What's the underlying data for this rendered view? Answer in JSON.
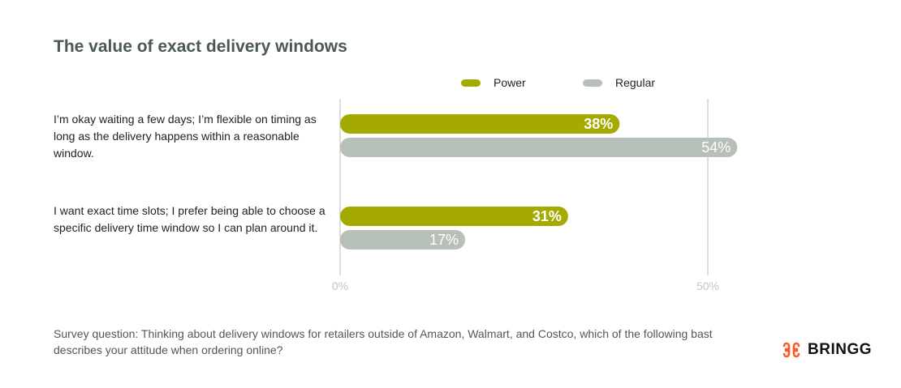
{
  "chart_data": {
    "type": "bar",
    "orientation": "horizontal",
    "title": "The value of exact delivery windows",
    "categories": [
      "I’m okay waiting a few days; I’m flexible on timing as long as the delivery happens within a reasonable window.",
      "I want exact time slots; I prefer being able to choose a specific delivery time window so I can plan around it."
    ],
    "series": [
      {
        "name": "Power",
        "values": [
          38,
          31
        ],
        "labels": [
          "38%",
          "31%"
        ],
        "color": "#a5aa00"
      },
      {
        "name": "Regular",
        "values": [
          54,
          17
        ],
        "labels": [
          "54%",
          "17%"
        ],
        "color": "#b6c0b8"
      }
    ],
    "xlim": [
      0,
      55
    ],
    "ticks": [
      {
        "value": 0,
        "label": "0%"
      },
      {
        "value": 50,
        "label": "50%"
      }
    ],
    "grid": true,
    "legend": "top"
  },
  "footnote": "Survey question: Thinking about delivery windows for retailers outside of Amazon, Walmart, and  Costco, which of the following bast describes your attitude when ordering online?",
  "brand": {
    "name": "BRINGG",
    "color": "#ff5a1f"
  }
}
